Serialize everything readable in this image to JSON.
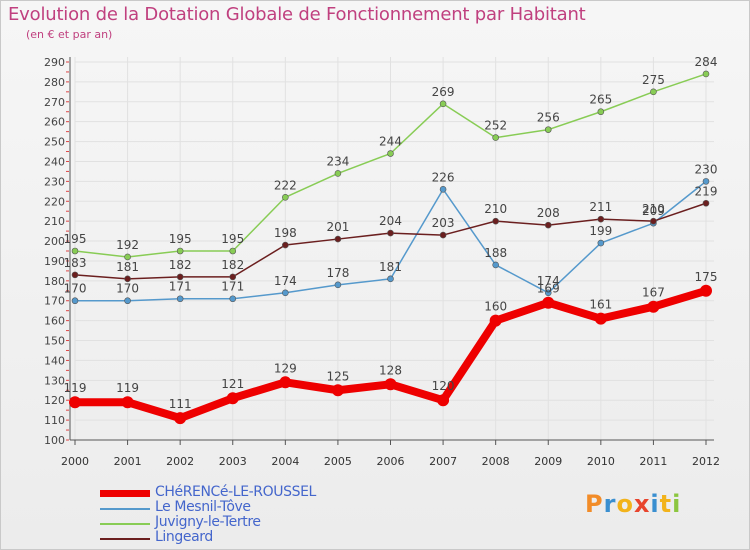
{
  "title": "Evolution de la Dotation Globale de Fonctionnement par Habitant",
  "subtitle": "(en € et par an)",
  "logo": {
    "text": "Proxiti",
    "letters": [
      {
        "ch": "P",
        "color": "#f28c28"
      },
      {
        "ch": "r",
        "color": "#3a8fd0"
      },
      {
        "ch": "o",
        "color": "#f2b31b"
      },
      {
        "ch": "x",
        "color": "#e8442d"
      },
      {
        "ch": "i",
        "color": "#3a8fd0"
      },
      {
        "ch": "t",
        "color": "#f2b31b"
      },
      {
        "ch": "i",
        "color": "#8cc63f"
      }
    ]
  },
  "chart_data": {
    "type": "line",
    "title": "Evolution de la Dotation Globale de Fonctionnement par Habitant",
    "subtitle": "(en € et par an)",
    "xlabel": "",
    "ylabel": "",
    "x": [
      "2000",
      "2001",
      "2002",
      "2003",
      "2004",
      "2005",
      "2006",
      "2007",
      "2008",
      "2009",
      "2010",
      "2011",
      "2012"
    ],
    "ylim": [
      100,
      290
    ],
    "yticks": [
      100,
      110,
      120,
      130,
      140,
      150,
      160,
      170,
      180,
      190,
      200,
      210,
      220,
      230,
      240,
      250,
      260,
      270,
      280,
      290
    ],
    "grid": true,
    "legend_position": "bottom-left",
    "series": [
      {
        "name": "CHéRENCé-LE-ROUSSEL",
        "color": "#ee0000",
        "values": [
          119,
          119,
          111,
          121,
          129,
          125,
          128,
          120,
          160,
          169,
          161,
          167,
          175
        ],
        "labels": [
          "119",
          "119",
          "111",
          "121",
          "129",
          "125",
          "128",
          "120",
          "160",
          "169",
          "161",
          "167",
          "175"
        ]
      },
      {
        "name": "Le Mesnil-Tôve",
        "color": "#5599cc",
        "values": [
          170,
          170,
          171,
          171,
          174,
          178,
          181,
          226,
          188,
          174,
          199,
          209,
          230
        ],
        "labels": [
          "170",
          "170",
          "171",
          "171",
          "174",
          "178",
          "181",
          "226",
          "188",
          "174",
          "199",
          "209",
          "230"
        ]
      },
      {
        "name": "Juvigny-le-Tertre",
        "color": "#88cc55",
        "values": [
          195,
          192,
          195,
          195,
          222,
          234,
          244,
          269,
          252,
          256,
          265,
          275,
          284
        ],
        "labels": [
          "195",
          "192",
          "195",
          "195",
          "222",
          "234",
          "244",
          "269",
          "252",
          "256",
          "265",
          "275",
          "284"
        ]
      },
      {
        "name": "Lingeard",
        "color": "#6b1f1f",
        "values": [
          183,
          181,
          182,
          182,
          198,
          201,
          204,
          203,
          210,
          208,
          211,
          210,
          219
        ],
        "labels": [
          "183",
          "181",
          "182",
          "182",
          "198",
          "201",
          "204",
          "203",
          "210",
          "208",
          "211",
          "210",
          "219"
        ]
      }
    ]
  }
}
